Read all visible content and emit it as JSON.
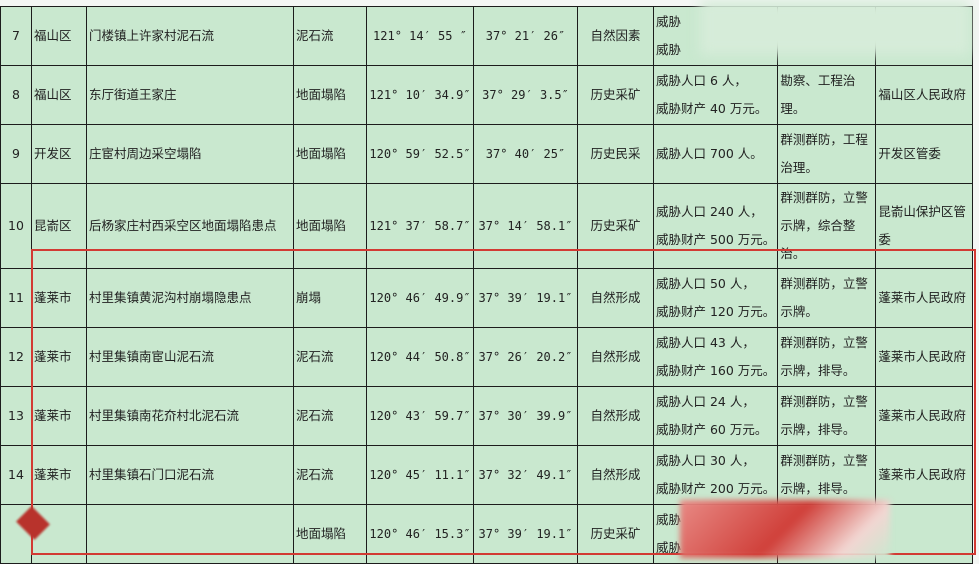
{
  "rows": [
    {
      "no": "7",
      "district": "福山区",
      "location": "门楼镇上许家村泥石流",
      "type": "泥石流",
      "lon": "121° 14′ 55 ″",
      "lat": "37° 21′ 26″",
      "cause": "自然因素",
      "threat1": "威胁",
      "threat2": "威胁",
      "measure": "",
      "authority": ""
    },
    {
      "no": "8",
      "district": "福山区",
      "location": "东厅街道王家庄",
      "type": "地面塌陷",
      "lon": "121° 10′ 34.9″",
      "lat": "37° 29′ 3.5″",
      "cause": "历史采矿",
      "threat1": "威胁人口 6 人，",
      "threat2": "威胁财产 40 万元。",
      "measure": "勘察、工程治理。",
      "authority": "福山区人民政府"
    },
    {
      "no": "9",
      "district": "开发区",
      "location": "庄宦村周边采空塌陷",
      "type": "地面塌陷",
      "lon": "120° 59′ 52.5″",
      "lat": "37° 40′ 25″",
      "cause": "历史民采",
      "threat1": "威胁人口 700 人。",
      "threat2": "",
      "measure": "群测群防，工程治理。",
      "authority": "开发区管委"
    },
    {
      "no": "10",
      "district": "昆嵛区",
      "location": "后杨家庄村西采空区地面塌陷患点",
      "type": "地面塌陷",
      "lon": "121° 37′ 58.7″",
      "lat": "37° 14′ 58.1″",
      "cause": "历史采矿",
      "threat1": "威胁人口 240 人，",
      "threat2": "威胁财产 500 万元。",
      "measure": "群测群防，立警示牌，综合整治。",
      "authority": "昆嵛山保护区管委"
    },
    {
      "no": "11",
      "district": "蓬莱市",
      "location": "村里集镇黄泥沟村崩塌隐患点",
      "type": "崩塌",
      "lon": "120° 46′ 49.9″",
      "lat": "37° 39′ 19.1″",
      "cause": "自然形成",
      "threat1": "威胁人口 50 人，",
      "threat2": "威胁财产 120 万元。",
      "measure": "群测群防，立警示牌。",
      "authority": "蓬莱市人民政府"
    },
    {
      "no": "12",
      "district": "蓬莱市",
      "location": "村里集镇南宦山泥石流",
      "type": "泥石流",
      "lon": "120° 44′ 50.8″",
      "lat": "37° 26′ 20.2″",
      "cause": "自然形成",
      "threat1": "威胁人口 43 人，",
      "threat2": "威胁财产 160 万元。",
      "measure": "群测群防，立警示牌，排导。",
      "authority": "蓬莱市人民政府"
    },
    {
      "no": "13",
      "district": "蓬莱市",
      "location": "村里集镇南花夼村北泥石流",
      "type": "泥石流",
      "lon": "120° 43′ 59.7″",
      "lat": "37° 30′ 39.9″",
      "cause": "自然形成",
      "threat1": "威胁人口 24 人，",
      "threat2": "威胁财产 60 万元。",
      "measure": "群测群防，立警示牌，排导。",
      "authority": "蓬莱市人民政府"
    },
    {
      "no": "14",
      "district": "蓬莱市",
      "location": "村里集镇石门口泥石流",
      "type": "泥石流",
      "lon": "120° 45′ 11.1″",
      "lat": "37° 32′ 49.1″",
      "cause": "自然形成",
      "threat1": "威胁人口 30 人，",
      "threat2": "威胁财产 200 万元。",
      "measure": "群测群防，立警示牌，排导。",
      "authority": "蓬莱市人民政府"
    },
    {
      "no": "",
      "district": "",
      "location": "",
      "type": "地面塌陷",
      "lon": "120° 46′ 15.3″",
      "lat": "37° 39′ 19.1″",
      "cause": "历史采矿",
      "threat1": "威胁",
      "threat2": "威胁",
      "measure": "",
      "authority": ""
    }
  ],
  "highlight_color": "#d23a33",
  "table_background": "#c9e8cf"
}
